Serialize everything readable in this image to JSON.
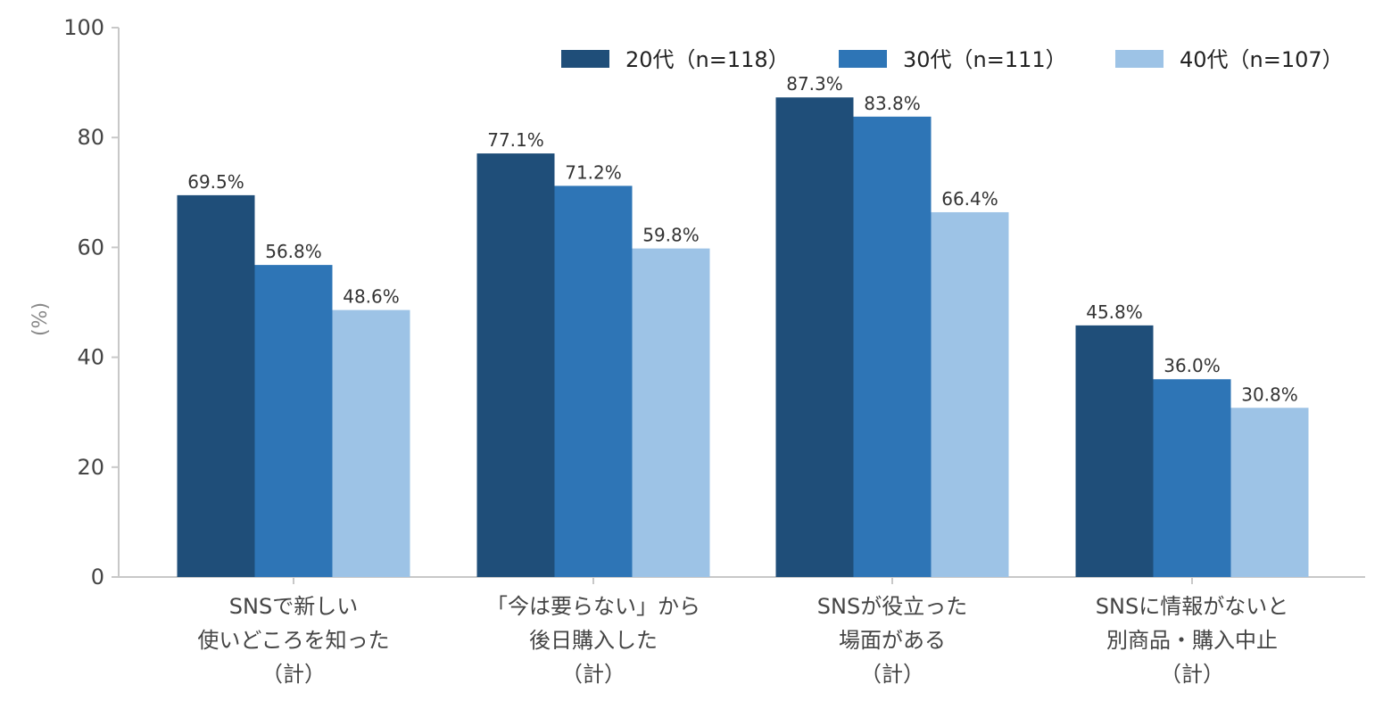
{
  "chart_data": {
    "type": "bar",
    "categories": [
      [
        "SNSで新しい",
        "使いどころを知った",
        "（計）"
      ],
      [
        "「今は要らない」から",
        "後日購入した",
        "（計）"
      ],
      [
        "SNSが役立った",
        "場面がある",
        "（計）"
      ],
      [
        "SNSに情報がないと",
        "別商品・購入中止",
        "（計）"
      ]
    ],
    "series": [
      {
        "name": "20代（n=118）",
        "color": "#1f4e79",
        "values": [
          69.5,
          77.1,
          87.3,
          45.8
        ]
      },
      {
        "name": "30代（n=111）",
        "color": "#2e75b6",
        "values": [
          56.8,
          71.2,
          83.8,
          36.0
        ]
      },
      {
        "name": "40代（n=107）",
        "color": "#9dc3e6",
        "values": [
          48.6,
          59.8,
          66.4,
          30.8
        ]
      }
    ],
    "value_suffix": "%",
    "ylabel": "(%)",
    "ylim": [
      0,
      100
    ],
    "yticks": [
      0,
      20,
      40,
      60,
      80,
      100
    ],
    "grid": false,
    "legend_position": "top-right"
  }
}
